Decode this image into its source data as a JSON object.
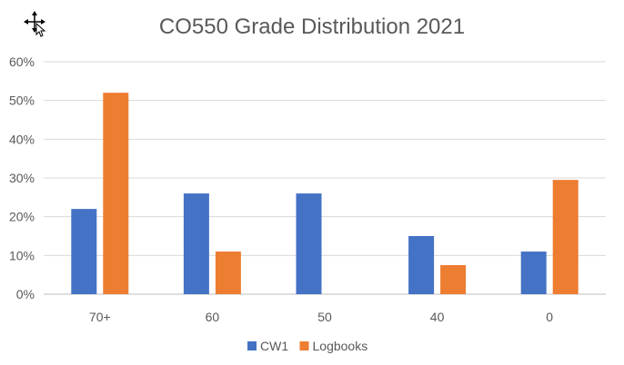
{
  "chart_data": {
    "type": "bar",
    "title": "CO550 Grade Distribution 2021",
    "categories": [
      "70+",
      "60",
      "50",
      "40",
      "0"
    ],
    "series": [
      {
        "name": "CW1",
        "values": [
          22,
          26,
          26,
          15,
          11
        ],
        "color": "#4472C4"
      },
      {
        "name": "Logbooks",
        "values": [
          52,
          11,
          0,
          7.5,
          29.5
        ],
        "color": "#ED7D31"
      }
    ],
    "ylim": [
      0,
      60
    ],
    "yticks": [
      0,
      10,
      20,
      30,
      40,
      50,
      60
    ],
    "ytick_labels": [
      "0%",
      "10%",
      "20%",
      "30%",
      "40%",
      "50%",
      "60%"
    ],
    "grid": true,
    "legend_position": "bottom",
    "xlabel": "",
    "ylabel": ""
  },
  "cursor_icon": "move-cursor-icon"
}
